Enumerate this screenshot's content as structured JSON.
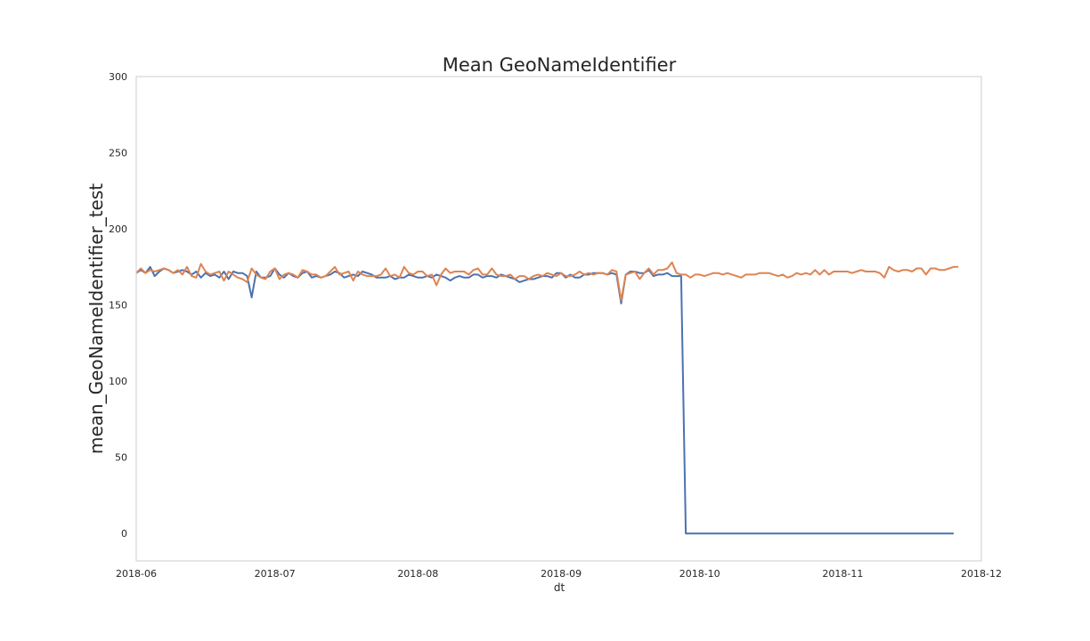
{
  "chart_data": {
    "type": "line",
    "title": "Mean GeoNameIdentifier",
    "xlabel": "dt",
    "ylabel": "mean_GeoNameIdentifier_test",
    "x_axis": "date",
    "xlim": [
      "2018-06-01",
      "2018-12-01"
    ],
    "ylim": [
      -18,
      300
    ],
    "xticks": [
      "2018-06",
      "2018-07",
      "2018-08",
      "2018-09",
      "2018-10",
      "2018-11",
      "2018-12"
    ],
    "yticks": [
      0,
      50,
      100,
      150,
      200,
      250,
      300
    ],
    "grid": false,
    "legend": "none",
    "colors": [
      "#4c72b0",
      "#dd8452"
    ],
    "series": [
      {
        "start": "2018-06-01",
        "step_days": 1,
        "values": [
          171,
          173,
          171,
          175,
          169,
          172,
          174,
          173,
          171,
          172,
          173,
          172,
          170,
          172,
          168,
          171,
          169,
          170,
          168,
          172,
          167,
          172,
          171,
          171,
          169,
          155,
          172,
          168,
          168,
          169,
          174,
          170,
          168,
          171,
          169,
          168,
          171,
          172,
          168,
          169,
          168,
          169,
          170,
          172,
          171,
          168,
          169,
          170,
          169,
          172,
          171,
          170,
          168,
          168,
          168,
          169,
          167,
          168,
          168,
          170,
          169,
          168,
          168,
          169,
          168,
          170,
          169,
          168,
          166,
          168,
          169,
          168,
          168,
          170,
          170,
          168,
          169,
          169,
          168,
          170,
          169,
          168,
          167,
          165,
          166,
          167,
          167,
          168,
          169,
          169,
          168,
          171,
          171,
          168,
          170,
          168,
          168,
          170,
          170,
          171,
          171,
          171,
          170,
          171,
          170,
          151,
          170,
          172,
          172,
          171,
          171,
          173,
          169,
          170,
          170,
          171,
          169,
          169,
          169,
          0,
          0,
          0,
          0,
          0,
          0,
          0,
          0,
          0,
          0,
          0,
          0,
          0,
          0,
          0,
          0,
          0,
          0,
          0,
          0,
          0,
          0,
          0,
          0,
          0,
          0,
          0,
          0,
          0,
          0,
          0,
          0,
          0,
          0,
          0,
          0,
          0,
          0,
          0,
          0,
          0,
          0,
          0,
          0,
          0,
          0,
          0,
          0,
          0,
          0,
          0,
          0,
          0,
          0,
          0,
          0,
          0,
          0,
          0
        ]
      },
      {
        "start": "2018-06-01",
        "step_days": 1,
        "values": [
          171,
          174,
          171,
          173,
          172,
          173,
          174,
          173,
          171,
          173,
          170,
          175,
          169,
          168,
          177,
          172,
          170,
          171,
          172,
          166,
          172,
          170,
          168,
          167,
          165,
          174,
          170,
          168,
          167,
          172,
          174,
          167,
          170,
          171,
          170,
          168,
          173,
          172,
          170,
          170,
          168,
          169,
          172,
          175,
          170,
          171,
          172,
          166,
          172,
          170,
          169,
          169,
          169,
          170,
          174,
          169,
          170,
          168,
          175,
          171,
          170,
          172,
          172,
          169,
          170,
          163,
          170,
          174,
          171,
          172,
          172,
          172,
          170,
          173,
          174,
          170,
          170,
          174,
          170,
          169,
          169,
          170,
          167,
          169,
          169,
          167,
          169,
          170,
          169,
          171,
          170,
          169,
          171,
          169,
          169,
          170,
          172,
          170,
          171,
          170,
          171,
          171,
          170,
          173,
          172,
          153,
          170,
          171,
          172,
          167,
          171,
          174,
          170,
          173,
          173,
          174,
          178,
          171,
          170,
          170,
          168,
          170,
          170,
          169,
          170,
          171,
          171,
          170,
          171,
          170,
          169,
          168,
          170,
          170,
          170,
          171,
          171,
          171,
          170,
          169,
          170,
          168,
          169,
          171,
          170,
          171,
          170,
          173,
          170,
          173,
          170,
          172,
          172,
          172,
          172,
          171,
          172,
          173,
          172,
          172,
          172,
          171,
          168,
          175,
          173,
          172,
          173,
          173,
          172,
          174,
          174,
          170,
          174,
          174,
          173,
          173,
          174,
          175,
          175
        ]
      }
    ]
  }
}
